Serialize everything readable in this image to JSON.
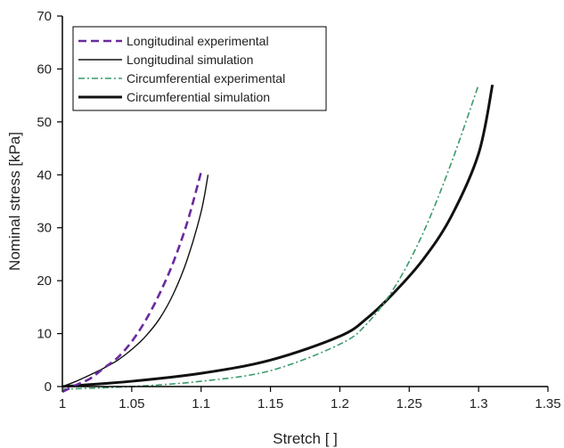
{
  "chart_data": {
    "type": "line",
    "title": "",
    "xlabel": "Stretch [ ]",
    "ylabel": "Nominal stress [kPa]",
    "xlim": [
      1,
      1.35
    ],
    "ylim": [
      0,
      70
    ],
    "x_ticks": [
      "1",
      "1.05",
      "1.1",
      "1.15",
      "1.2",
      "1.25",
      "1.3",
      "1.35"
    ],
    "y_ticks": [
      "0",
      "10",
      "20",
      "30",
      "40",
      "50",
      "60",
      "70"
    ],
    "grid": false,
    "legend_position": "top-left",
    "series": [
      {
        "name": "Longitudinal experimental",
        "color": "#6a2a9e",
        "style": "dashed",
        "x": [
          1.0,
          1.01,
          1.02,
          1.03,
          1.04,
          1.05,
          1.06,
          1.07,
          1.08,
          1.09,
          1.1
        ],
        "y": [
          -1,
          0.3,
          1.5,
          3.5,
          5.5,
          8.5,
          12.5,
          17.5,
          23.5,
          31,
          40.5
        ]
      },
      {
        "name": "Longitudinal simulation",
        "color": "#111111",
        "style": "solid-thin",
        "x": [
          1.0,
          1.01,
          1.02,
          1.03,
          1.04,
          1.05,
          1.06,
          1.07,
          1.08,
          1.09,
          1.1,
          1.105
        ],
        "y": [
          0,
          1,
          2.2,
          3.5,
          5,
          7,
          9.5,
          12.8,
          17.5,
          24,
          33,
          40
        ]
      },
      {
        "name": "Circumferential experimental",
        "color": "#3a9a6a",
        "style": "dash-dot",
        "x": [
          1.0,
          1.05,
          1.1,
          1.15,
          1.2,
          1.22,
          1.24,
          1.26,
          1.28,
          1.3
        ],
        "y": [
          -0.5,
          0,
          1,
          3,
          8,
          12,
          19,
          29,
          42,
          57
        ]
      },
      {
        "name": "Circumferential simulation",
        "color": "#111111",
        "style": "solid-thick",
        "x": [
          1.0,
          1.05,
          1.1,
          1.15,
          1.2,
          1.22,
          1.24,
          1.26,
          1.28,
          1.3,
          1.31
        ],
        "y": [
          0,
          1,
          2.5,
          5,
          9.5,
          13,
          18,
          24,
          32,
          44,
          57
        ]
      }
    ]
  }
}
